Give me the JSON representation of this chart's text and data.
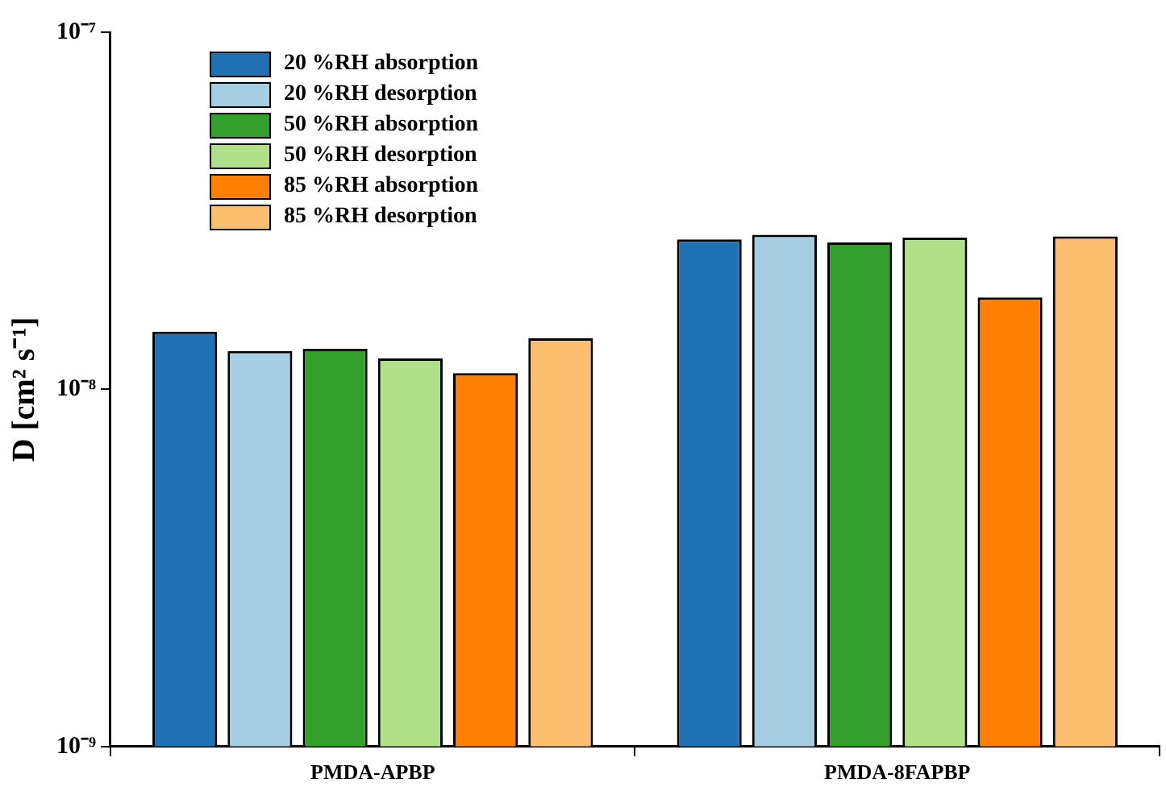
{
  "chart_data": {
    "type": "bar",
    "ylabel": "D [cm² s⁻¹]",
    "categories": [
      "PMDA-APBP",
      "PMDA-8FAPBP"
    ],
    "log": "y",
    "ylim": [
      1e-09,
      1e-07
    ],
    "yticks": [
      {
        "value": 1e-09,
        "label": "10⁻⁹"
      },
      {
        "value": 1e-08,
        "label": "10⁻⁸"
      },
      {
        "value": 1e-07,
        "label": "10⁻⁷"
      }
    ],
    "grid": false,
    "legend": "top left",
    "series": [
      {
        "name": "20 %RH absorption",
        "color": "#2171b5",
        "values": [
          1.45e-08,
          2.63e-08
        ]
      },
      {
        "name": "20 %RH desorption",
        "color": "#a6cee3",
        "values": [
          1.28e-08,
          2.71e-08
        ]
      },
      {
        "name": "50 %RH absorption",
        "color": "#33a02c",
        "values": [
          1.3e-08,
          2.58e-08
        ]
      },
      {
        "name": "50 %RH desorption",
        "color": "#b2df8a",
        "values": [
          1.22e-08,
          2.66e-08
        ]
      },
      {
        "name": "85 %RH absorption",
        "color": "#ff7f00",
        "values": [
          1.11e-08,
          1.81e-08
        ]
      },
      {
        "name": "85 %RH desorption",
        "color": "#fdbf6f",
        "values": [
          1.39e-08,
          2.68e-08
        ]
      }
    ]
  }
}
